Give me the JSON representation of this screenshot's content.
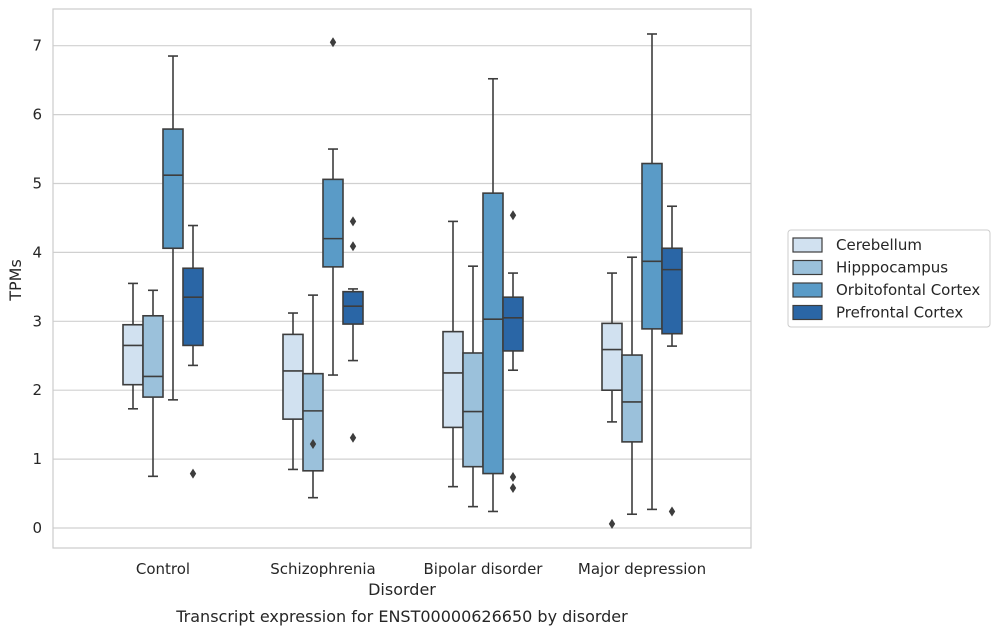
{
  "chart_data": {
    "type": "box",
    "title": "",
    "caption": "Transcript expression for ENST00000626650 by disorder",
    "xlabel": "Disorder",
    "ylabel": "TPMs",
    "ylim": [
      -0.28,
      7.55
    ],
    "yticks": [
      "0",
      "1",
      "2",
      "3",
      "4",
      "5",
      "6",
      "7"
    ],
    "grid": true,
    "legend_position": "right",
    "categories": [
      "Control",
      "Schizophrenia",
      "Bipolar disorder",
      "Major depression"
    ],
    "series": [
      {
        "name": "Cerebellum",
        "color": "#d1e1f0",
        "boxes": [
          {
            "whisker_low": 1.73,
            "q1": 2.08,
            "median": 2.65,
            "q3": 2.95,
            "whisker_high": 3.55,
            "outliers": []
          },
          {
            "whisker_low": 0.85,
            "q1": 1.58,
            "median": 2.28,
            "q3": 2.81,
            "whisker_high": 3.12,
            "outliers": []
          },
          {
            "whisker_low": 0.6,
            "q1": 1.46,
            "median": 2.25,
            "q3": 2.85,
            "whisker_high": 4.45,
            "outliers": []
          },
          {
            "whisker_low": 1.54,
            "q1": 2.0,
            "median": 2.59,
            "q3": 2.97,
            "whisker_high": 3.7,
            "outliers": [
              0.06
            ]
          }
        ]
      },
      {
        "name": "Hipppocampus",
        "color": "#9bc1db",
        "boxes": [
          {
            "whisker_low": 0.75,
            "q1": 1.9,
            "median": 2.2,
            "q3": 3.08,
            "whisker_high": 3.45,
            "outliers": []
          },
          {
            "whisker_low": 0.44,
            "q1": 0.83,
            "median": 1.7,
            "q3": 2.24,
            "whisker_high": 3.38,
            "outliers": [
              1.22
            ]
          },
          {
            "whisker_low": 0.31,
            "q1": 0.89,
            "median": 1.69,
            "q3": 2.54,
            "whisker_high": 3.8,
            "outliers": []
          },
          {
            "whisker_low": 0.2,
            "q1": 1.25,
            "median": 1.83,
            "q3": 2.51,
            "whisker_high": 3.93,
            "outliers": []
          }
        ]
      },
      {
        "name": "Orbitofontal Cortex",
        "color": "#5a9bc7",
        "boxes": [
          {
            "whisker_low": 1.86,
            "q1": 4.06,
            "median": 5.12,
            "q3": 5.79,
            "whisker_high": 6.85,
            "outliers": []
          },
          {
            "whisker_low": 2.22,
            "q1": 3.79,
            "median": 4.2,
            "q3": 5.06,
            "whisker_high": 5.5,
            "outliers": [
              7.05
            ]
          },
          {
            "whisker_low": 0.24,
            "q1": 0.79,
            "median": 3.03,
            "q3": 4.86,
            "whisker_high": 6.52,
            "outliers": []
          },
          {
            "whisker_low": 0.27,
            "q1": 2.89,
            "median": 3.87,
            "q3": 5.29,
            "whisker_high": 7.17,
            "outliers": []
          }
        ]
      },
      {
        "name": "Prefrontal Cortex",
        "color": "#2a66a6",
        "boxes": [
          {
            "whisker_low": 2.36,
            "q1": 2.65,
            "median": 3.35,
            "q3": 3.77,
            "whisker_high": 4.39,
            "outliers": [
              0.79
            ]
          },
          {
            "whisker_low": 2.43,
            "q1": 2.96,
            "median": 3.22,
            "q3": 3.43,
            "whisker_high": 3.47,
            "outliers": [
              4.45,
              4.09,
              1.31
            ]
          },
          {
            "whisker_low": 2.29,
            "q1": 2.57,
            "median": 3.05,
            "q3": 3.35,
            "whisker_high": 3.7,
            "outliers": [
              4.54,
              0.74,
              0.58
            ]
          },
          {
            "whisker_low": 2.64,
            "q1": 2.82,
            "median": 3.75,
            "q3": 4.06,
            "whisker_high": 4.67,
            "outliers": [
              0.24
            ]
          }
        ]
      }
    ]
  }
}
